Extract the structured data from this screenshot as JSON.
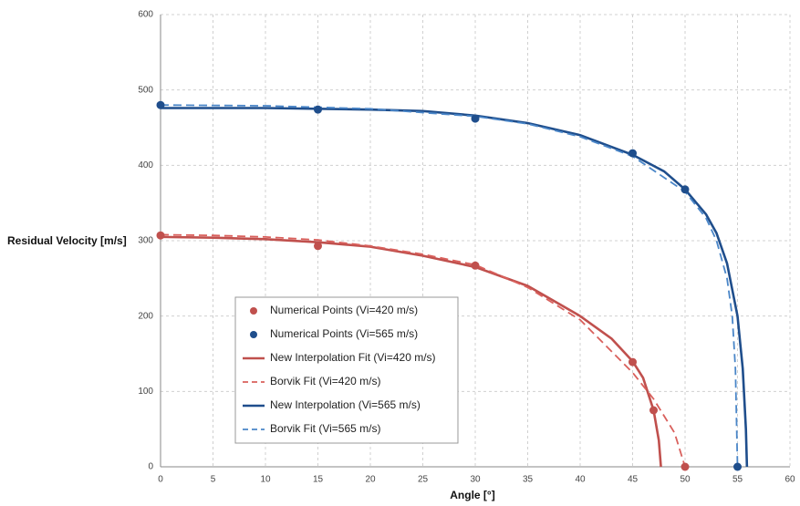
{
  "chart_data": {
    "type": "line",
    "x_label": "Angle [°]",
    "y_label": "Residual Velocity [m/s]",
    "xlim": [
      0,
      60
    ],
    "xticks": [
      0,
      5,
      10,
      15,
      20,
      25,
      30,
      35,
      40,
      45,
      50,
      55,
      60
    ],
    "ylim": [
      0,
      600
    ],
    "yticks": [
      0,
      100,
      200,
      300,
      400,
      500,
      600
    ],
    "grid": true,
    "series": [
      {
        "name": "Numerical Points (Vi=420 m/s)",
        "color": "#c0504d",
        "style": "points",
        "x": [
          0,
          15,
          30,
          45,
          47,
          50
        ],
        "values": [
          307,
          293,
          267,
          139,
          75,
          0
        ]
      },
      {
        "name": "Numerical Points (Vi=565 m/s)",
        "color": "#1f4e8c",
        "style": "points",
        "x": [
          0,
          15,
          30,
          45,
          50,
          55
        ],
        "values": [
          480,
          474,
          462,
          416,
          368,
          0
        ]
      },
      {
        "name": "New Interpolation Fit (Vi=420 m/s)",
        "color": "#c0504d",
        "style": "solid",
        "x": [
          0,
          5,
          10,
          15,
          20,
          25,
          30,
          35,
          40,
          43,
          45,
          46,
          47,
          47.5,
          47.7
        ],
        "values": [
          305,
          304,
          302,
          298,
          292,
          280,
          265,
          240,
          200,
          170,
          140,
          118,
          75,
          35,
          0
        ]
      },
      {
        "name": "Borvik Fit (Vi=420 m/s)",
        "color": "#d9605c",
        "style": "dashed",
        "x": [
          0,
          5,
          10,
          15,
          20,
          25,
          30,
          35,
          40,
          45,
          47,
          49,
          50
        ],
        "values": [
          308,
          307,
          305,
          301,
          293,
          282,
          268,
          238,
          195,
          125,
          90,
          45,
          0
        ]
      },
      {
        "name": "New Interpolation (Vi=565 m/s)",
        "color": "#1f4e8c",
        "style": "solid",
        "x": [
          0,
          10,
          20,
          25,
          30,
          35,
          40,
          45,
          48,
          50,
          52,
          53,
          54,
          55,
          55.5,
          55.8,
          55.9
        ],
        "values": [
          476,
          476,
          474,
          472,
          466,
          456,
          440,
          414,
          392,
          368,
          335,
          310,
          270,
          200,
          130,
          50,
          0
        ]
      },
      {
        "name": "Borvik Fit (Vi=565 m/s)",
        "color": "#4a86c8",
        "style": "dashed",
        "x": [
          0,
          10,
          20,
          30,
          35,
          40,
          45,
          50,
          52,
          53,
          54,
          54.5,
          54.8,
          55
        ],
        "values": [
          480,
          479,
          475,
          465,
          455,
          438,
          412,
          365,
          330,
          300,
          250,
          200,
          130,
          0
        ]
      }
    ]
  }
}
